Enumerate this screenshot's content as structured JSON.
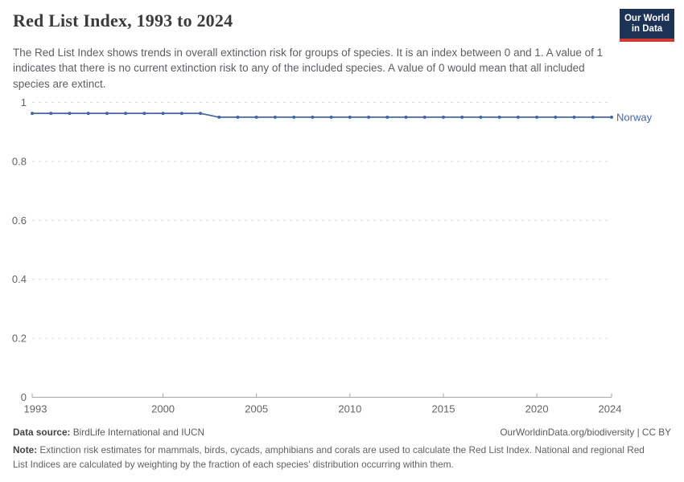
{
  "header": {
    "title": "Red List Index, 1993 to 2024",
    "subtitle": "The Red List Index shows trends in overall extinction risk for groups of species. It is an index between 0 and 1. A value of 1 indicates that there is no current extinction risk to any of the included species. A value of 0 would mean that all included species are extinct.",
    "logo": {
      "line1": "Our World",
      "line2": "in Data",
      "bg_color": "#1d3356",
      "accent_color": "#cf3a31"
    }
  },
  "chart_data": {
    "type": "line",
    "title": "Red List Index, 1993 to 2024",
    "xlabel": "",
    "ylabel": "",
    "x": [
      1993,
      1994,
      1995,
      1996,
      1997,
      1998,
      1999,
      2000,
      2001,
      2002,
      2003,
      2004,
      2005,
      2006,
      2007,
      2008,
      2009,
      2010,
      2011,
      2012,
      2013,
      2014,
      2015,
      2016,
      2017,
      2018,
      2019,
      2020,
      2021,
      2022,
      2023,
      2024
    ],
    "series": [
      {
        "name": "Norway",
        "color": "#4566a5",
        "values": [
          0.963,
          0.963,
          0.963,
          0.963,
          0.963,
          0.963,
          0.963,
          0.963,
          0.963,
          0.963,
          0.95,
          0.95,
          0.95,
          0.95,
          0.95,
          0.95,
          0.95,
          0.95,
          0.95,
          0.95,
          0.95,
          0.95,
          0.95,
          0.95,
          0.95,
          0.95,
          0.95,
          0.95,
          0.95,
          0.95,
          0.95,
          0.95
        ]
      }
    ],
    "xlim": [
      1993,
      2024
    ],
    "ylim": [
      0,
      1
    ],
    "yticks": [
      0,
      0.2,
      0.4,
      0.6,
      0.8,
      1
    ],
    "xticks": [
      1993,
      2000,
      2005,
      2010,
      2015,
      2020,
      2024
    ],
    "grid": "horizontal-dashed",
    "legend_position": "end-of-line-label",
    "layout": {
      "grid_color": "#d7d7d7",
      "axis_color": "#a6a6a6",
      "tick_color": "#636363"
    }
  },
  "footer": {
    "source_label": "Data source:",
    "source_text": " BirdLife International and IUCN",
    "attribution": "OurWorldinData.org/biodiversity | CC BY",
    "note_label": "Note:",
    "note_text": " Extinction risk estimates for mammals, birds, cycads, amphibians and corals are used to calculate the Red List Index. National and regional Red List Indices are calculated by weighting by the fraction of each species' distribution occurring within them."
  }
}
